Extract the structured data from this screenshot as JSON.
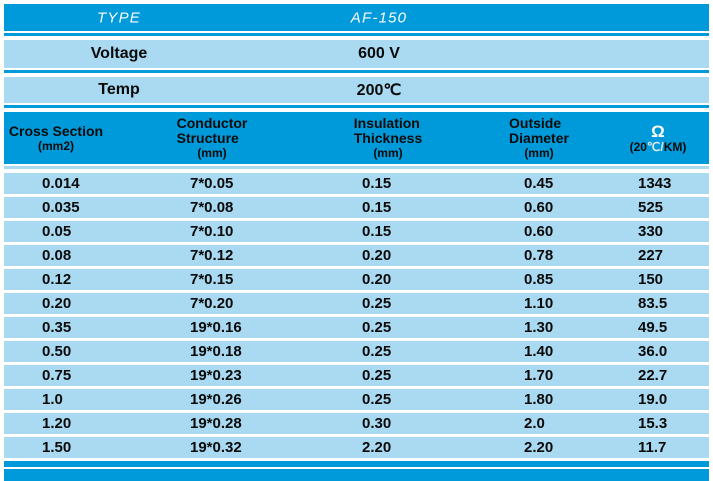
{
  "info_rows": [
    {
      "label": "TYPE",
      "value": "AF-150"
    },
    {
      "label": "Voltage",
      "value": "600 V"
    },
    {
      "label": "Temp",
      "value": "200℃"
    }
  ],
  "table": {
    "columns": [
      {
        "lines": [
          "Cross Section"
        ],
        "sub": "(mm2)"
      },
      {
        "lines": [
          "Conductor",
          "Structure"
        ],
        "sub": "(mm)"
      },
      {
        "lines": [
          "Insulation",
          "Thickness"
        ],
        "sub": "(mm)"
      },
      {
        "lines": [
          "Outside",
          "Diameter"
        ],
        "sub": "(mm)"
      },
      {
        "symbol": "Ω",
        "sub_parts": [
          "(20",
          "℃/",
          "KM)"
        ]
      }
    ],
    "rows": [
      [
        "0.014",
        "7*0.05",
        "0.15",
        "0.45",
        "1343"
      ],
      [
        "0.035",
        "7*0.08",
        "0.15",
        "0.60",
        "525"
      ],
      [
        "0.05",
        "7*0.10",
        "0.15",
        "0.60",
        "330"
      ],
      [
        "0.08",
        "7*0.12",
        "0.20",
        "0.78",
        "227"
      ],
      [
        "0.12",
        "7*0.15",
        "0.20",
        "0.85",
        "150"
      ],
      [
        "0.20",
        "7*0.20",
        "0.25",
        "1.10",
        "83.5"
      ],
      [
        "0.35",
        "19*0.16",
        "0.25",
        "1.30",
        "49.5"
      ],
      [
        "0.50",
        "19*0.18",
        "0.25",
        "1.40",
        "36.0"
      ],
      [
        "0.75",
        "19*0.23",
        "0.25",
        "1.70",
        "22.7"
      ],
      [
        "1.0",
        "19*0.26",
        "0.25",
        "1.80",
        "19.0"
      ],
      [
        "1.20",
        "19*0.28",
        "0.30",
        "2.0",
        "15.3"
      ],
      [
        "1.50",
        "19*0.32",
        "2.20",
        "2.20",
        "11.7"
      ]
    ]
  },
  "colors": {
    "accent_blue": "#0099d9",
    "light_blue": "#a9daf2"
  }
}
